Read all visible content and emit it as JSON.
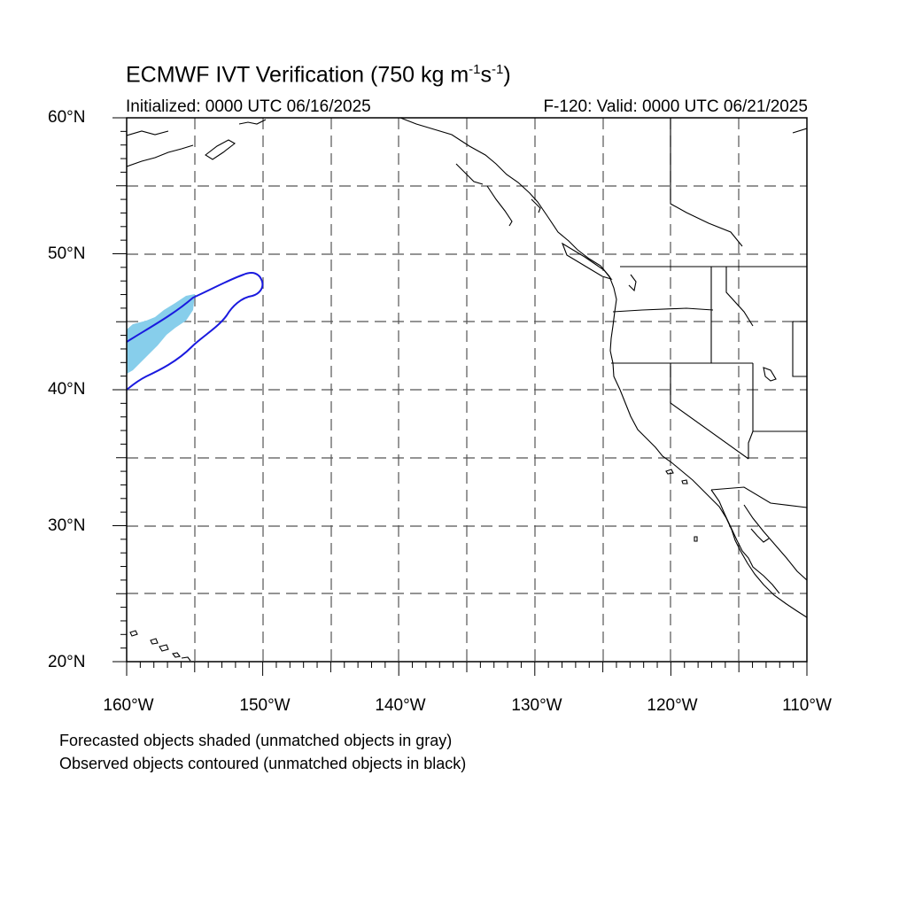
{
  "title_main": "ECMWF IVT Verification (750 kg m",
  "title_exp1": "-1",
  "title_mid": "s",
  "title_exp2": "-1",
  "title_end": ")",
  "init_label": "Initialized: 0000 UTC 06/16/2025",
  "valid_label": "F-120: Valid: 0000 UTC 06/21/2025",
  "lat_labels": [
    "60°N",
    "50°N",
    "40°N",
    "30°N",
    "20°N"
  ],
  "lon_labels": [
    "160°W",
    "150°W",
    "140°W",
    "130°W",
    "120°W",
    "110°W"
  ],
  "map_extent": {
    "lon_min": -160,
    "lon_max": -110,
    "lat_min": 20,
    "lat_max": 60
  },
  "notes": [
    "Forecasted objects shaded (unmatched objects in gray)",
    "Observed objects contoured (unmatched objects in black)"
  ],
  "colors": {
    "forecast_fill": "#87ceeb",
    "observed_contour": "#1a1adf",
    "coastline": "#000000",
    "grid": "#555555"
  }
}
